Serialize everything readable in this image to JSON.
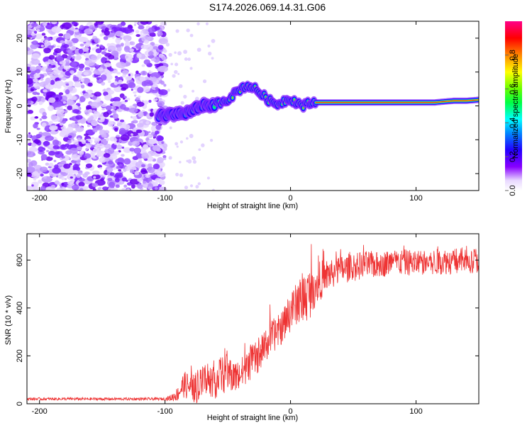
{
  "title": "S174.2026.069.14.31.G06",
  "chart_data": [
    {
      "type": "heatmap",
      "name": "spectrogram",
      "xlabel": "Height of straight line (km)",
      "ylabel": "Frequency (Hz)",
      "xlim": [
        -210,
        150
      ],
      "ylim": [
        -25,
        25
      ],
      "xticks": [
        -200,
        -100,
        0,
        100
      ],
      "xtick_labels": [
        "-200",
        "-100",
        "0",
        "100"
      ],
      "yticks": [
        -20,
        -10,
        0,
        10,
        20
      ],
      "ytick_labels": [
        "-20",
        "-10",
        "0",
        "10",
        "20"
      ],
      "noise_region": [
        -210,
        -100
      ],
      "ridge_x": [
        -100,
        -90,
        -80,
        -70,
        -60,
        -50,
        -40,
        -35,
        -30,
        -25,
        -20,
        -15,
        -10,
        -5,
        0,
        5,
        10,
        15,
        20,
        40,
        60,
        80,
        100,
        115,
        120,
        130,
        140,
        150
      ],
      "ridge_freq": [
        -3,
        -2.5,
        -1.5,
        0,
        0.5,
        2,
        5,
        6,
        5.5,
        4,
        2.5,
        1,
        0.5,
        1.5,
        2,
        1,
        0,
        0.8,
        1,
        1,
        1,
        1,
        1,
        1,
        1.2,
        1.5,
        1.5,
        1.8
      ],
      "colorbar": {
        "label": "Normalized spectral amplitude",
        "range": [
          0,
          1
        ],
        "ticks": [
          0.0,
          0.2,
          0.4,
          0.6,
          0.8
        ],
        "tick_labels": [
          "0.0",
          "0.2",
          "0.4",
          "0.6",
          "0.8"
        ]
      }
    },
    {
      "type": "line",
      "name": "snr",
      "xlabel": "Height of straight line (km)",
      "ylabel": "SNR (10 * v/v)",
      "xlim": [
        -210,
        150
      ],
      "ylim": [
        0,
        710
      ],
      "xticks": [
        -200,
        -100,
        0,
        100
      ],
      "xtick_labels": [
        "-200",
        "-100",
        "0",
        "100"
      ],
      "yticks": [
        0,
        200,
        400,
        600
      ],
      "ytick_labels": [
        "0",
        "200",
        "400",
        "600"
      ],
      "series": [
        {
          "name": "SNR",
          "color": "#ee3333",
          "x": [
            -210,
            -200,
            -180,
            -160,
            -140,
            -120,
            -100,
            -95,
            -90,
            -85,
            -80,
            -75,
            -70,
            -65,
            -60,
            -55,
            -50,
            -45,
            -40,
            -35,
            -30,
            -25,
            -20,
            -15,
            -10,
            -5,
            0,
            5,
            10,
            15,
            20,
            25,
            30,
            40,
            50,
            60,
            70,
            80,
            90,
            100,
            110,
            120,
            130,
            140,
            150
          ],
          "values": [
            20,
            20,
            20,
            20,
            20,
            20,
            20,
            25,
            40,
            80,
            70,
            60,
            90,
            110,
            100,
            120,
            130,
            110,
            120,
            150,
            180,
            200,
            240,
            280,
            300,
            330,
            380,
            420,
            440,
            460,
            500,
            520,
            540,
            560,
            570,
            580,
            580,
            590,
            590,
            590,
            590,
            595,
            595,
            600,
            600
          ],
          "amp": [
            6,
            6,
            6,
            6,
            6,
            6,
            6,
            15,
            30,
            55,
            60,
            60,
            70,
            80,
            80,
            80,
            80,
            70,
            70,
            70,
            70,
            70,
            70,
            70,
            70,
            70,
            80,
            90,
            110,
            110,
            90,
            80,
            70,
            60,
            60,
            60,
            55,
            55,
            55,
            55,
            55,
            55,
            55,
            55,
            55
          ]
        }
      ]
    }
  ]
}
